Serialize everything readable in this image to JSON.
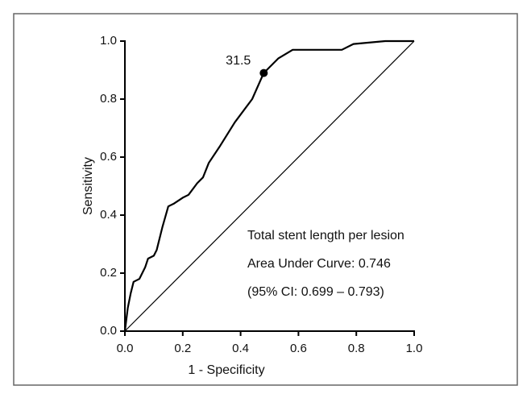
{
  "chart_data": {
    "type": "line",
    "xlabel": "1 - Specificity",
    "ylabel": "Sensitivity",
    "xlim": [
      0,
      1
    ],
    "ylim": [
      0,
      1
    ],
    "xticks": [
      {
        "value": 0,
        "label": "0.0"
      },
      0.2,
      0.4,
      0.6,
      0.8,
      {
        "value": 1,
        "label": "1.0"
      }
    ],
    "yticks": [
      {
        "value": 0,
        "label": "0.0"
      },
      0.2,
      0.4,
      0.6,
      0.8,
      {
        "value": 1,
        "label": "1.0"
      }
    ],
    "series": [
      {
        "color": "#000000",
        "x": [
          0,
          0.01,
          0.02,
          0.03,
          0.05,
          0.07,
          0.08,
          0.1,
          0.11,
          0.13,
          0.15,
          0.17,
          0.2,
          0.22,
          0.25,
          0.27,
          0.29,
          0.33,
          0.38,
          0.44,
          0.48,
          0.53,
          0.58,
          0.75,
          0.79,
          0.9,
          1.0
        ],
        "values": [
          0,
          0.08,
          0.13,
          0.17,
          0.18,
          0.22,
          0.25,
          0.26,
          0.28,
          0.36,
          0.43,
          0.44,
          0.46,
          0.47,
          0.51,
          0.53,
          0.58,
          0.64,
          0.72,
          0.8,
          0.89,
          0.94,
          0.97,
          0.97,
          0.99,
          1.0,
          1.0
        ]
      },
      {
        "color": "#000000",
        "x": [
          0,
          1
        ],
        "values": [
          0,
          1
        ]
      }
    ],
    "marker": {
      "x": 0.48,
      "y": 0.89,
      "label": "31.5"
    },
    "annotations": [
      "Total stent length per lesion",
      "Area Under Curve: 0.746",
      "(95% CI: 0.699 – 0.793)"
    ]
  }
}
